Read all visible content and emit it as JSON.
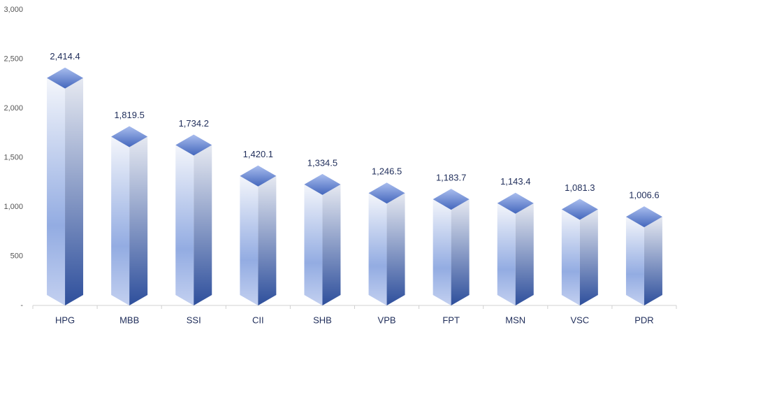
{
  "chart_data": {
    "type": "bar3d",
    "categories": [
      "HPG",
      "MBB",
      "SSI",
      "CII",
      "SHB",
      "VPB",
      "FPT",
      "MSN",
      "VSC",
      "PDR"
    ],
    "values": [
      2414.4,
      1819.5,
      1734.2,
      1420.1,
      1334.5,
      1246.5,
      1183.7,
      1143.4,
      1081.3,
      1006.6
    ],
    "value_labels": [
      "2,414.4",
      "1,819.5",
      "1,734.2",
      "1,420.1",
      "1,334.5",
      "1,246.5",
      "1,183.7",
      "1,143.4",
      "1,081.3",
      "1,006.6"
    ],
    "color": "#3b5ba8",
    "ylim": [
      0,
      3000
    ],
    "yticks": [
      {
        "value": 0,
        "label": "-"
      },
      500,
      {
        "value": 1000,
        "label": "1,000"
      },
      {
        "value": 1500,
        "label": "1,500"
      },
      {
        "value": 2000,
        "label": "2,000"
      },
      {
        "value": 2500,
        "label": "2,500"
      },
      {
        "value": 3000,
        "label": "3,000"
      }
    ]
  }
}
